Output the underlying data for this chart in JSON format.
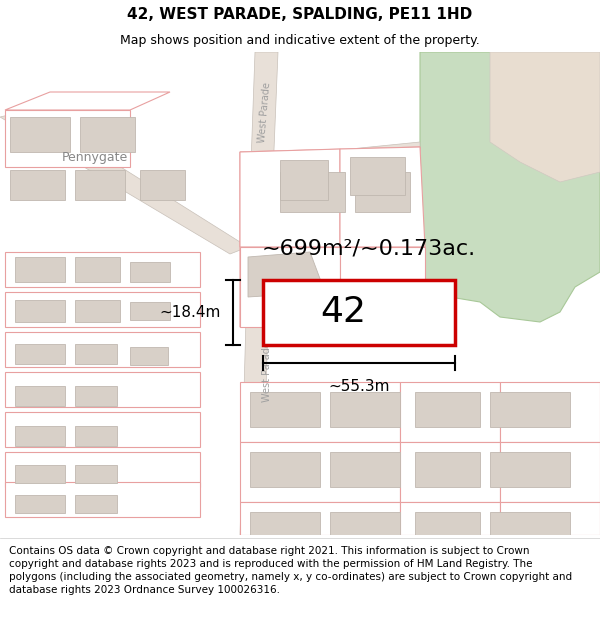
{
  "title_line1": "42, WEST PARADE, SPALDING, PE11 1HD",
  "title_line2": "Map shows position and indicative extent of the property.",
  "footer_text": "Contains OS data © Crown copyright and database right 2021. This information is subject to Crown copyright and database rights 2023 and is reproduced with the permission of HM Land Registry. The polygons (including the associated geometry, namely x, y co-ordinates) are subject to Crown copyright and database rights 2023 Ordnance Survey 100026316.",
  "property_label": "42",
  "area_label": "~699m²/~0.173ac.",
  "width_label": "~55.3m",
  "height_label": "~18.4m",
  "road_label_wp": "West Parade",
  "road_label_pg": "Pennygate",
  "map_bg": "#ffffff",
  "plot_outline_color": "#e8a0a0",
  "building_fill": "#d8d0c8",
  "building_outline": "#c0b8b0",
  "road_fill": "#e8e0d8",
  "road_outline": "#c8c0b8",
  "green_fill": "#c8ddc0",
  "green_outline": "#a8c898",
  "green_fill2": "#dde8d8",
  "property_rect_color": "#cc0000",
  "dim_color": "#000000",
  "title_fontsize": 11,
  "subtitle_fontsize": 9,
  "footer_fontsize": 7.5,
  "area_fontsize": 16,
  "property_num_fontsize": 26,
  "dim_fontsize": 11,
  "road_label_fontsize": 7,
  "figsize": [
    6.0,
    6.25
  ],
  "dpi": 100
}
